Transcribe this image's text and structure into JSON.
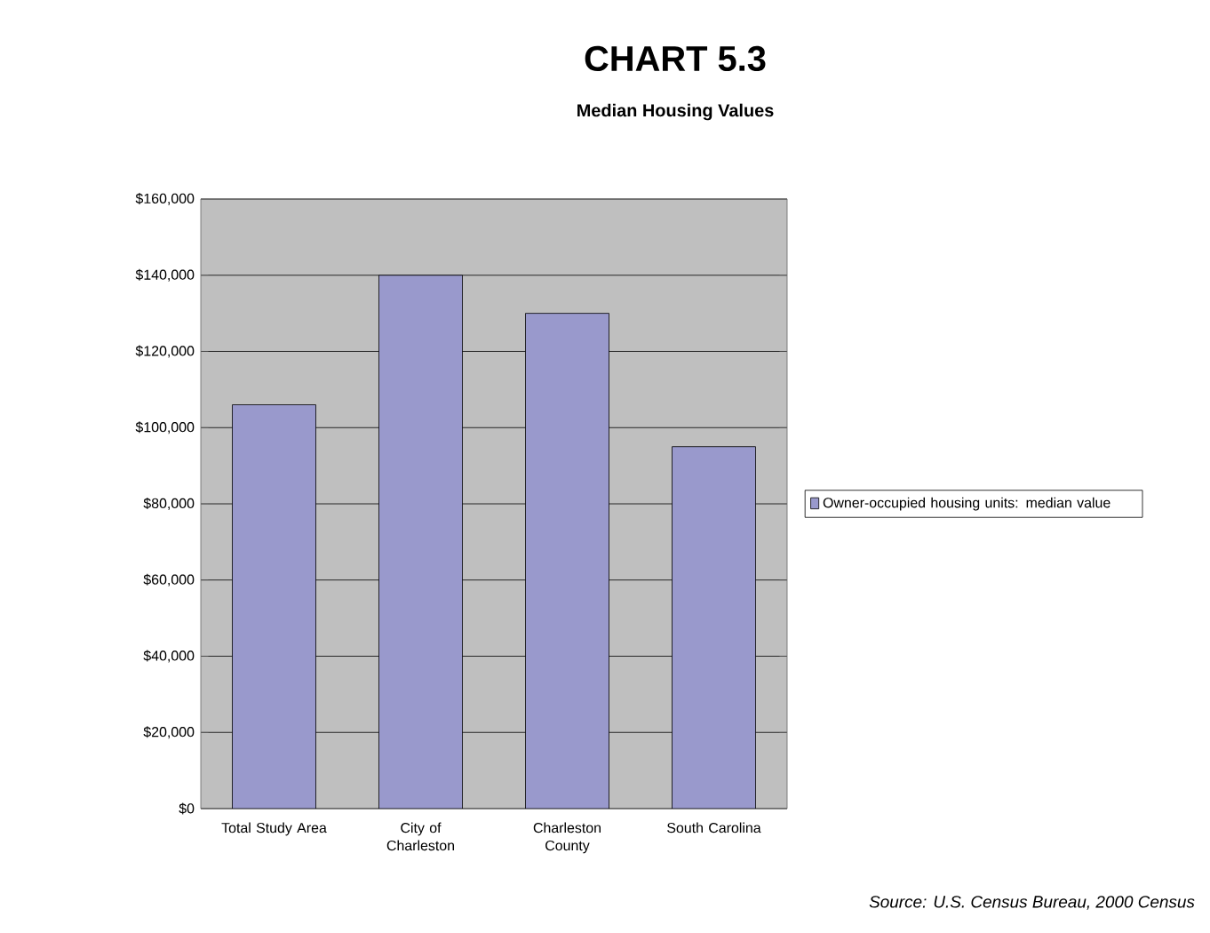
{
  "chart_data": {
    "type": "bar",
    "title": "CHART 5.3",
    "subtitle": "Median Housing Values",
    "categories": [
      "Total Study Area",
      "City of Charleston",
      "Charleston County",
      "South Carolina"
    ],
    "series": [
      {
        "name": "Owner-occupied housing units: median value",
        "color": "#9999cc",
        "values": [
          106000,
          140000,
          130000,
          95000
        ]
      }
    ],
    "ylim": [
      0,
      160000
    ],
    "yticks": [
      {
        "value": 0,
        "label": "$0"
      },
      {
        "value": 20000,
        "label": "$20,000"
      },
      {
        "value": 40000,
        "label": "$40,000"
      },
      {
        "value": 60000,
        "label": "$60,000"
      },
      {
        "value": 80000,
        "label": "$80,000"
      },
      {
        "value": 100000,
        "label": "$100,000"
      },
      {
        "value": 120000,
        "label": "$120,000"
      },
      {
        "value": 140000,
        "label": "$140,000"
      },
      {
        "value": 160000,
        "label": "$160,000"
      }
    ],
    "grid": "y",
    "legend": "right",
    "annotations": [
      "Source: U.S. Census Bureau, 2000 Census"
    ]
  }
}
